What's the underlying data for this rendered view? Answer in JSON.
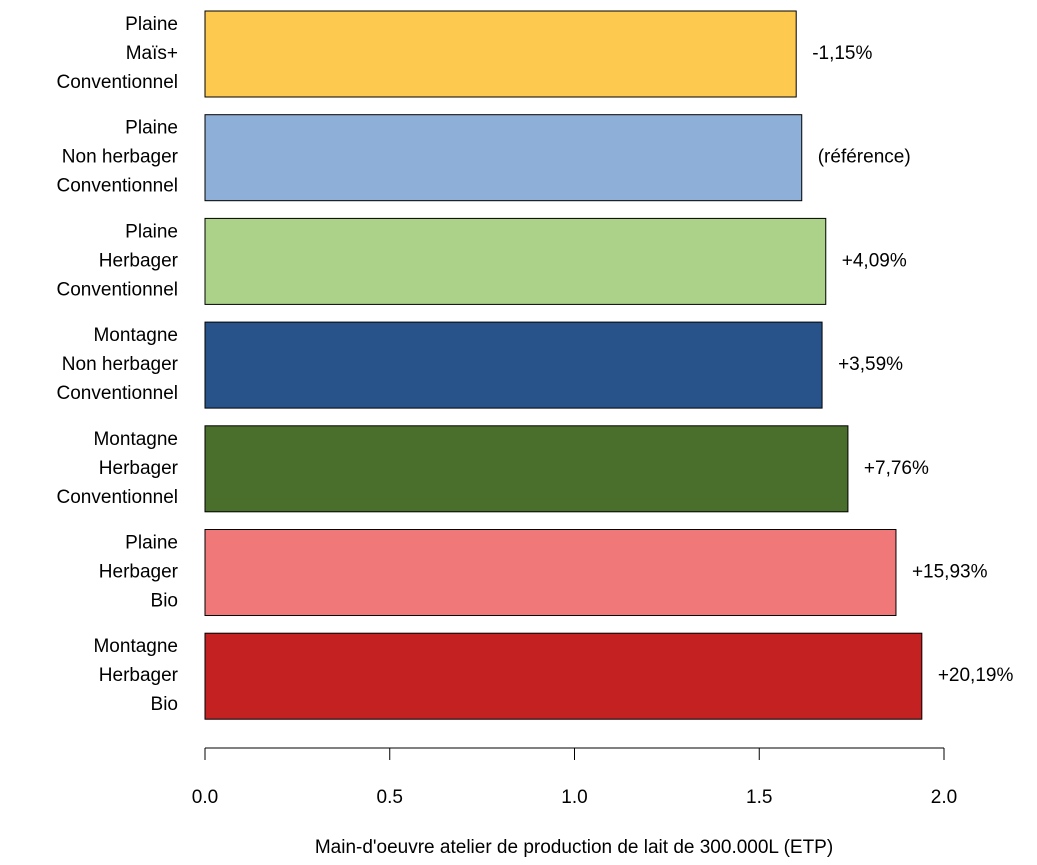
{
  "chart_data": {
    "type": "barh",
    "categories": [
      [
        "Plaine",
        "Maïs+",
        "Conventionnel"
      ],
      [
        "Plaine",
        "Non herbager",
        "Conventionnel"
      ],
      [
        "Plaine",
        "Herbager",
        "Conventionnel"
      ],
      [
        "Montagne",
        "Non herbager",
        "Conventionnel"
      ],
      [
        "Montagne",
        "Herbager",
        "Conventionnel"
      ],
      [
        "Plaine",
        "Herbager",
        "Bio"
      ],
      [
        "Montagne",
        "Herbager",
        "Bio"
      ]
    ],
    "values": [
      1.6,
      1.615,
      1.68,
      1.67,
      1.74,
      1.87,
      1.94
    ],
    "colors": [
      "#fdc94e",
      "#8eafd8",
      "#acd28a",
      "#27538a",
      "#4a6e2b",
      "#f07878",
      "#c42222"
    ],
    "annotations": [
      "-1,15%",
      "(référence)",
      "+4,09%",
      "+3,59%",
      "+7,76%",
      "+15,93%",
      "+20,19%"
    ],
    "xlim": [
      0,
      2
    ],
    "xticks": [
      {
        "value": 0,
        "label": "0.0"
      },
      0.5,
      {
        "value": 1,
        "label": "1.0"
      },
      1.5,
      {
        "value": 2,
        "label": "2.0"
      }
    ],
    "xlabel": "Main-d'oeuvre atelier de production de lait de 300.000L (ETP)"
  }
}
